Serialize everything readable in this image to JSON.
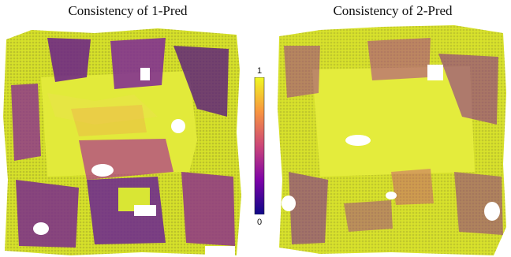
{
  "figure": {
    "left_title": "Consistency of 1-Pred",
    "right_title": "Consistency of 2-Pred",
    "colorbar": {
      "max_label": "1",
      "min_label": "0",
      "colormap": "plasma",
      "colors": [
        "#0d0887",
        "#7e03a8",
        "#cc4778",
        "#f89540",
        "#f0f921"
      ]
    }
  }
}
